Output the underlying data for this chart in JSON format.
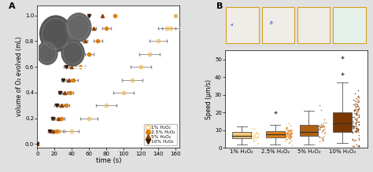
{
  "panel_A": {
    "series": [
      {
        "label": "1% H₂O₂",
        "color": "#f5c060",
        "marker": "o",
        "filled": false,
        "points": [
          [
            0,
            0.0,
            0
          ],
          [
            25,
            0.1,
            5
          ],
          [
            40,
            0.1,
            8
          ],
          [
            60,
            0.2,
            10
          ],
          [
            80,
            0.3,
            12
          ],
          [
            100,
            0.4,
            12
          ],
          [
            110,
            0.5,
            12
          ],
          [
            120,
            0.6,
            12
          ],
          [
            130,
            0.7,
            12
          ],
          [
            140,
            0.8,
            10
          ],
          [
            150,
            0.9,
            10
          ],
          [
            155,
            0.9,
            10
          ],
          [
            160,
            1.0,
            0
          ]
        ]
      },
      {
        "label": "2.5% H₂O₂",
        "color": "#e07d10",
        "marker": "o",
        "filled": true,
        "points": [
          [
            0,
            0.0,
            0
          ],
          [
            22,
            0.1,
            4
          ],
          [
            28,
            0.2,
            4
          ],
          [
            33,
            0.3,
            4
          ],
          [
            38,
            0.4,
            4
          ],
          [
            42,
            0.5,
            5
          ],
          [
            50,
            0.6,
            5
          ],
          [
            60,
            0.7,
            5
          ],
          [
            70,
            0.8,
            5
          ],
          [
            80,
            0.9,
            5
          ],
          [
            90,
            1.0,
            0
          ]
        ]
      },
      {
        "label": "5% H₂O₂",
        "color": "#904000",
        "marker": "^",
        "filled": true,
        "points": [
          [
            0,
            0.0,
            0
          ],
          [
            18,
            0.1,
            3
          ],
          [
            24,
            0.2,
            3
          ],
          [
            28,
            0.3,
            3
          ],
          [
            32,
            0.4,
            3
          ],
          [
            36,
            0.5,
            3
          ],
          [
            40,
            0.6,
            3
          ],
          [
            46,
            0.7,
            3
          ],
          [
            55,
            0.8,
            3
          ],
          [
            65,
            0.9,
            3
          ],
          [
            75,
            1.0,
            0
          ]
        ]
      },
      {
        "label": "10% H₂O₂",
        "color": "#3a1800",
        "marker": "v",
        "filled": true,
        "points": [
          [
            0,
            0.0,
            0
          ],
          [
            14,
            0.1,
            2
          ],
          [
            18,
            0.2,
            2
          ],
          [
            22,
            0.3,
            2
          ],
          [
            26,
            0.4,
            2
          ],
          [
            30,
            0.5,
            2
          ],
          [
            33,
            0.6,
            2
          ],
          [
            37,
            0.7,
            2
          ],
          [
            44,
            0.8,
            2
          ],
          [
            52,
            0.9,
            2
          ],
          [
            60,
            1.0,
            0
          ]
        ]
      }
    ],
    "xlabel": "time (s)",
    "ylabel": "volume of O₂ evolved (mL)",
    "xlim": [
      0,
      165
    ],
    "ylim": [
      -0.03,
      1.08
    ],
    "xticks": [
      0,
      20,
      40,
      60,
      80,
      100,
      120,
      140,
      160
    ],
    "yticks": [
      0.0,
      0.2,
      0.4,
      0.6,
      0.8,
      1.0
    ]
  },
  "panel_B": {
    "categories": [
      "1% H₂O₂",
      "2.5% H₂O₂",
      "5% H₂O₂",
      "10% H₂O₂"
    ],
    "box_facecolors": [
      "#f5c878",
      "#e07d10",
      "#b06010",
      "#7a3800"
    ],
    "jitter_colors": [
      "#f5c878",
      "#e08820",
      "#b06010",
      "#7a3800"
    ],
    "ylabel": "Speed (μm/s)",
    "ylim": [
      0,
      55
    ],
    "yticks": [
      0,
      10,
      20,
      30,
      40,
      50
    ],
    "box_data": [
      {
        "q1": 5.5,
        "median": 7.0,
        "q3": 9.0,
        "whisker_lo": 2.0,
        "whisker_hi": 12.0,
        "outliers": []
      },
      {
        "q1": 6.0,
        "median": 7.5,
        "q3": 9.5,
        "whisker_lo": 2.0,
        "whisker_hi": 13.0,
        "outliers": [
          20.0
        ]
      },
      {
        "q1": 7.0,
        "median": 9.0,
        "q3": 13.0,
        "whisker_lo": 2.0,
        "whisker_hi": 21.0,
        "outliers": []
      },
      {
        "q1": 9.0,
        "median": 14.0,
        "q3": 20.0,
        "whisker_lo": 3.0,
        "whisker_hi": 37.0,
        "outliers": [
          42.0,
          51.0
        ]
      }
    ],
    "arrow_color": "#c8960a",
    "img_bgcolor": [
      "#f0ede8",
      "#f0ede8",
      "#f0ede8",
      "#e5f0e8"
    ],
    "img_border_color": "#d4a020"
  },
  "bg_color": "#e0e0e0",
  "fig_width": 4.74,
  "fig_height": 2.19,
  "dpi": 100
}
